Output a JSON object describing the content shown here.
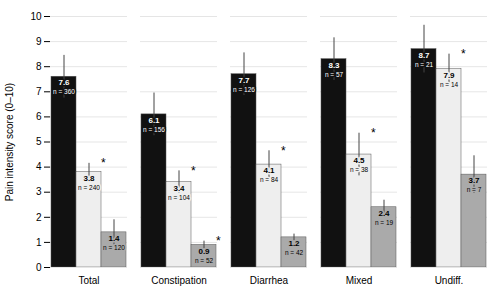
{
  "chart_data": {
    "type": "bar",
    "ylabel": "Pain intensity score (0–10)",
    "categories": [
      "Total",
      "Constipation",
      "Diarrhea",
      "Mixed",
      "Undiff."
    ],
    "series": [
      {
        "color": "#111111",
        "values": [
          7.6,
          6.1,
          7.7,
          8.3,
          8.7
        ],
        "errors": [
          0.85,
          0.85,
          0.85,
          0.85,
          0.95
        ],
        "ns": [
          "n = 360",
          "n = 156",
          "n = 126",
          "n = 57",
          "n = 21"
        ]
      },
      {
        "color": "#eeeeee",
        "values": [
          3.8,
          3.4,
          4.1,
          4.5,
          7.9
        ],
        "errors": [
          0.35,
          0.45,
          0.55,
          0.85,
          0.6
        ],
        "ns": [
          "n = 240",
          "n = 104",
          "n = 84",
          "n = 38",
          "n = 14"
        ],
        "annotations": [
          "*",
          "*",
          "*",
          "*",
          "*"
        ]
      },
      {
        "color": "#aaaaaa",
        "values": [
          1.4,
          0.9,
          1.2,
          2.4,
          3.7
        ],
        "errors": [
          0.5,
          0.15,
          0.13,
          0.28,
          0.75
        ],
        "ns": [
          "n = 120",
          "n = 52",
          "n = 42",
          "n = 19",
          "n = 7"
        ],
        "annotations": [
          null,
          "*",
          null,
          null,
          null
        ]
      }
    ],
    "ylim": [
      0,
      10
    ],
    "yticks": [
      0,
      1,
      2,
      3,
      4,
      5,
      6,
      7,
      8,
      9,
      10
    ],
    "grid": true,
    "data_labels": true
  }
}
